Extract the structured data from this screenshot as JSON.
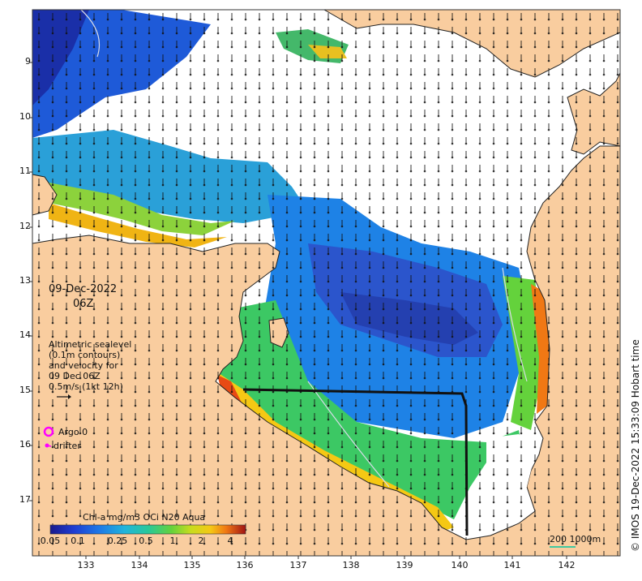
{
  "map": {
    "y_axis_ticks": [
      "9",
      "10",
      "11",
      "12",
      "13",
      "14",
      "15",
      "16",
      "17"
    ],
    "x_axis_ticks": [
      "133",
      "134",
      "135",
      "136",
      "137",
      "138",
      "139",
      "140",
      "141",
      "142"
    ],
    "date_line1": "09-Dec-2022",
    "date_line2": "06Z",
    "sealevel_legend": "Altimetric sealevel\n(0.1m contours)\nand velocity for\n09 Dec 06Z\n0.5m/s (1kt 12h)",
    "argo_label": "Argo 0",
    "drifter_label": "drifter",
    "colorbar_title": "Chl-a mg/m3 OCi N20 Aqua",
    "colorbar_ticks": [
      "0.05",
      "0.1",
      "0.25",
      "0.5",
      "1",
      "2",
      "4"
    ],
    "scale_label": "200  1000m",
    "credit": "© IMOS 19-Dec-2022 15:33:09 Hobart time"
  },
  "colors": {
    "land": "#f9cd9f",
    "ocean_nodata": "#ffffff",
    "argo": "#ff00ff",
    "drifter": "#ff00ff",
    "contour_line": "#d8dce8",
    "scale_line": "#40c8a0"
  }
}
